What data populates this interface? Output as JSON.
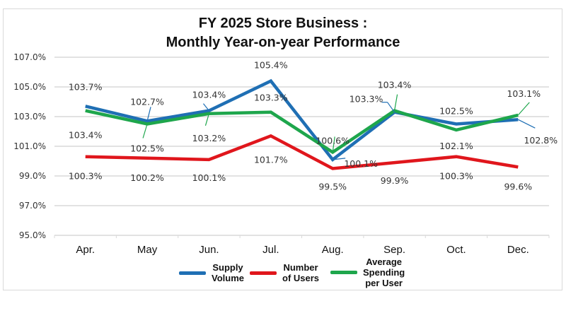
{
  "chart_data": {
    "type": "line",
    "title": "FY 2025 Store Business : Monthly Year-on-year Performance",
    "title_lines": [
      "FY 2025 Store Business :",
      "Monthly Year-on-year Performance"
    ],
    "xlabel": "",
    "ylabel": "",
    "categories": [
      "Apr.",
      "May",
      "Jun.",
      "Jul.",
      "Aug.",
      "Sep.",
      "Oct.",
      "Dec."
    ],
    "yticks": [
      "107.0%",
      "105.0%",
      "103.0%",
      "101.0%",
      "99.0%",
      "97.0%",
      "95.0%"
    ],
    "ylim": [
      95.0,
      107.0
    ],
    "grid": true,
    "legend_position": "bottom",
    "series": [
      {
        "name": "Supply Volume",
        "legend_label": "Supply\nVolume",
        "color": "#1f6fb4",
        "values": [
          103.7,
          102.7,
          103.4,
          105.4,
          100.1,
          103.3,
          102.5,
          102.8
        ],
        "labels": [
          "103.7%",
          "102.7%",
          "103.4%",
          "105.4%",
          "100.1%",
          "103.3%",
          "102.5%",
          "102.8%"
        ]
      },
      {
        "name": "Number of Users",
        "legend_label": "Number\nof Users",
        "color": "#e0161c",
        "values": [
          100.3,
          100.2,
          100.1,
          101.7,
          99.5,
          99.9,
          100.3,
          99.6
        ],
        "labels": [
          "100.3%",
          "100.2%",
          "100.1%",
          "101.7%",
          "99.5%",
          "99.9%",
          "100.3%",
          "99.6%"
        ]
      },
      {
        "name": "Average Spending per User",
        "legend_label": "Average\nSpending\nper User",
        "color": "#1ea64c",
        "values": [
          103.4,
          102.5,
          103.2,
          103.3,
          100.6,
          103.4,
          102.1,
          103.1
        ],
        "labels": [
          "103.4%",
          "102.5%",
          "103.2%",
          "103.3%",
          "100.6%",
          "103.4%",
          "102.1%",
          "103.1%"
        ]
      }
    ]
  },
  "colors": {
    "gridline": "#d9d9d9",
    "frame": "#d9d9d9",
    "text": "#333333"
  }
}
